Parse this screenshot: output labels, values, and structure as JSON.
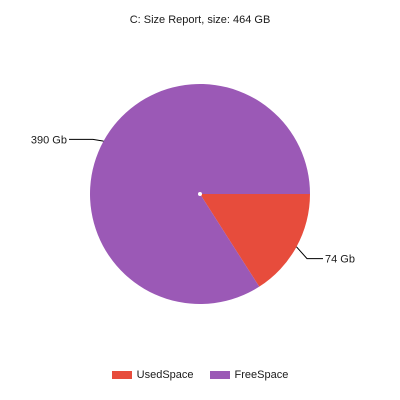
{
  "chart_data": {
    "type": "pie",
    "title": "C: Size Report, size: 464 GB",
    "categories": [
      "UsedSpace",
      "FreeSpace"
    ],
    "values": [
      74,
      390
    ],
    "data_labels": [
      "74 Gb",
      "390 Gb"
    ],
    "colors": [
      "#e74c3c",
      "#9b59b6"
    ],
    "legend": "bottom",
    "legend_labels": [
      "UsedSpace",
      "FreeSpace"
    ]
  }
}
